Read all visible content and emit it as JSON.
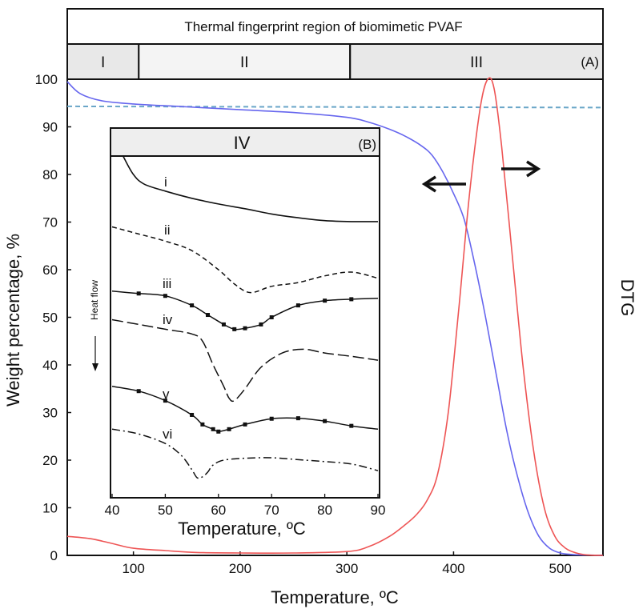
{
  "chart_data": [
    {
      "type": "line",
      "title": "Thermal fingerprint region of biomimetic PVAF",
      "panel_label": "(A)",
      "xlabel": "Temperature, ºC",
      "ylabel": "Weight percentage, %",
      "y2label": "DTG",
      "xlim": [
        38,
        540
      ],
      "ylim": [
        0,
        100
      ],
      "x_ticks": [
        100,
        200,
        300,
        400,
        500
      ],
      "y_ticks": [
        0,
        10,
        20,
        30,
        40,
        50,
        60,
        70,
        80,
        90,
        100
      ],
      "regions": [
        {
          "label": "I",
          "from": 38,
          "to": 105
        },
        {
          "label": "II",
          "from": 105,
          "to": 303
        },
        {
          "label": "III",
          "from": 303,
          "to": 540
        }
      ],
      "reference_line": {
        "y": 94.3,
        "style": "dashed"
      },
      "series": [
        {
          "color": "#6666ee",
          "axis": "left",
          "x": [
            38,
            50,
            70,
            100,
            150,
            200,
            250,
            300,
            320,
            340,
            355,
            370,
            380,
            390,
            400,
            410,
            420,
            430,
            440,
            450,
            460,
            470,
            480,
            490,
            500,
            510,
            520,
            530,
            540
          ],
          "y": [
            99.5,
            97,
            95.5,
            94.8,
            94.2,
            93.6,
            93.0,
            92.0,
            91.0,
            89.5,
            88.0,
            86.0,
            84.0,
            80.5,
            76.0,
            70.5,
            61.0,
            50.0,
            38.0,
            26.0,
            16.5,
            9.0,
            4.0,
            1.5,
            0.5,
            0.2,
            0.1,
            0.05,
            0
          ]
        },
        {
          "color": "#ee5555",
          "axis": "right",
          "x": [
            38,
            60,
            80,
            100,
            130,
            160,
            200,
            250,
            300,
            320,
            340,
            355,
            365,
            375,
            385,
            395,
            405,
            415,
            425,
            432,
            438,
            445,
            455,
            465,
            475,
            485,
            495,
            505,
            515,
            525,
            540
          ],
          "y": [
            4,
            3.5,
            2.5,
            1.5,
            1.0,
            0.6,
            0.5,
            0.5,
            0.8,
            1.8,
            4.0,
            6.5,
            8.5,
            11.5,
            17.0,
            30.0,
            52.0,
            76.0,
            94.0,
            100.0,
            98.0,
            86.0,
            63.0,
            40.0,
            22.0,
            10.0,
            4.0,
            1.5,
            0.5,
            0.1,
            0
          ]
        }
      ],
      "annotations": [
        "left arrow toward weight curve",
        "right arrow toward DTG curve"
      ]
    },
    {
      "type": "line",
      "title": "IV",
      "panel_label": "(B)",
      "xlabel": "Temperature, ºC",
      "xlim": [
        40,
        90
      ],
      "x_ticks": [
        40,
        50,
        60,
        70,
        80,
        90
      ],
      "side_label": "Heat flow",
      "series": [
        {
          "name": "i",
          "style": "solid",
          "x": [
            42,
            44,
            46,
            50,
            55,
            60,
            65,
            70,
            75,
            80,
            85,
            90
          ],
          "y": [
            84,
            80,
            78,
            76.5,
            75,
            73.8,
            72.8,
            71.7,
            70.9,
            70.3,
            70.1,
            70.1
          ]
        },
        {
          "name": "ii",
          "style": "dashed",
          "x": [
            40,
            45,
            50,
            55,
            60,
            63,
            66,
            70,
            75,
            80,
            85,
            90
          ],
          "y": [
            69,
            67.5,
            66,
            64,
            60,
            57,
            55.2,
            56.5,
            57.3,
            58.7,
            59.5,
            58.2
          ]
        },
        {
          "name": "iii",
          "style": "dotted-line",
          "x": [
            40,
            45,
            50,
            55,
            58,
            61,
            63,
            65,
            68,
            70,
            75,
            80,
            85,
            90
          ],
          "y": [
            55.5,
            55,
            54.5,
            52.5,
            50.5,
            48.5,
            47.5,
            47.7,
            48.5,
            50,
            52.5,
            53.5,
            53.8,
            54
          ]
        },
        {
          "name": "iv",
          "style": "long-dash",
          "x": [
            40,
            45,
            50,
            55,
            57,
            59,
            61,
            62,
            63,
            65,
            68,
            72,
            76,
            80,
            85,
            90
          ],
          "y": [
            49.5,
            48.5,
            47.5,
            46.5,
            45,
            40,
            35.5,
            33,
            32.5,
            35,
            39.5,
            42.5,
            43.3,
            42.5,
            41.8,
            41
          ]
        },
        {
          "name": "v",
          "style": "dotted-line",
          "x": [
            40,
            45,
            50,
            55,
            57,
            59,
            60,
            62,
            65,
            70,
            75,
            80,
            85,
            90
          ],
          "y": [
            35.5,
            34.5,
            32.5,
            29.5,
            27.5,
            26.5,
            26,
            26.5,
            27.5,
            28.7,
            28.8,
            28.2,
            27.2,
            26.5
          ]
        },
        {
          "name": "vi",
          "style": "dash-dot",
          "x": [
            40,
            45,
            50,
            53,
            55,
            56,
            57,
            58,
            59,
            61,
            65,
            70,
            75,
            80,
            85,
            90
          ],
          "y": [
            26.5,
            25.5,
            23.5,
            21,
            18,
            16.3,
            16.5,
            17.5,
            19,
            20,
            20.4,
            20.5,
            20.1,
            19.7,
            19.2,
            17.8
          ]
        }
      ]
    }
  ]
}
